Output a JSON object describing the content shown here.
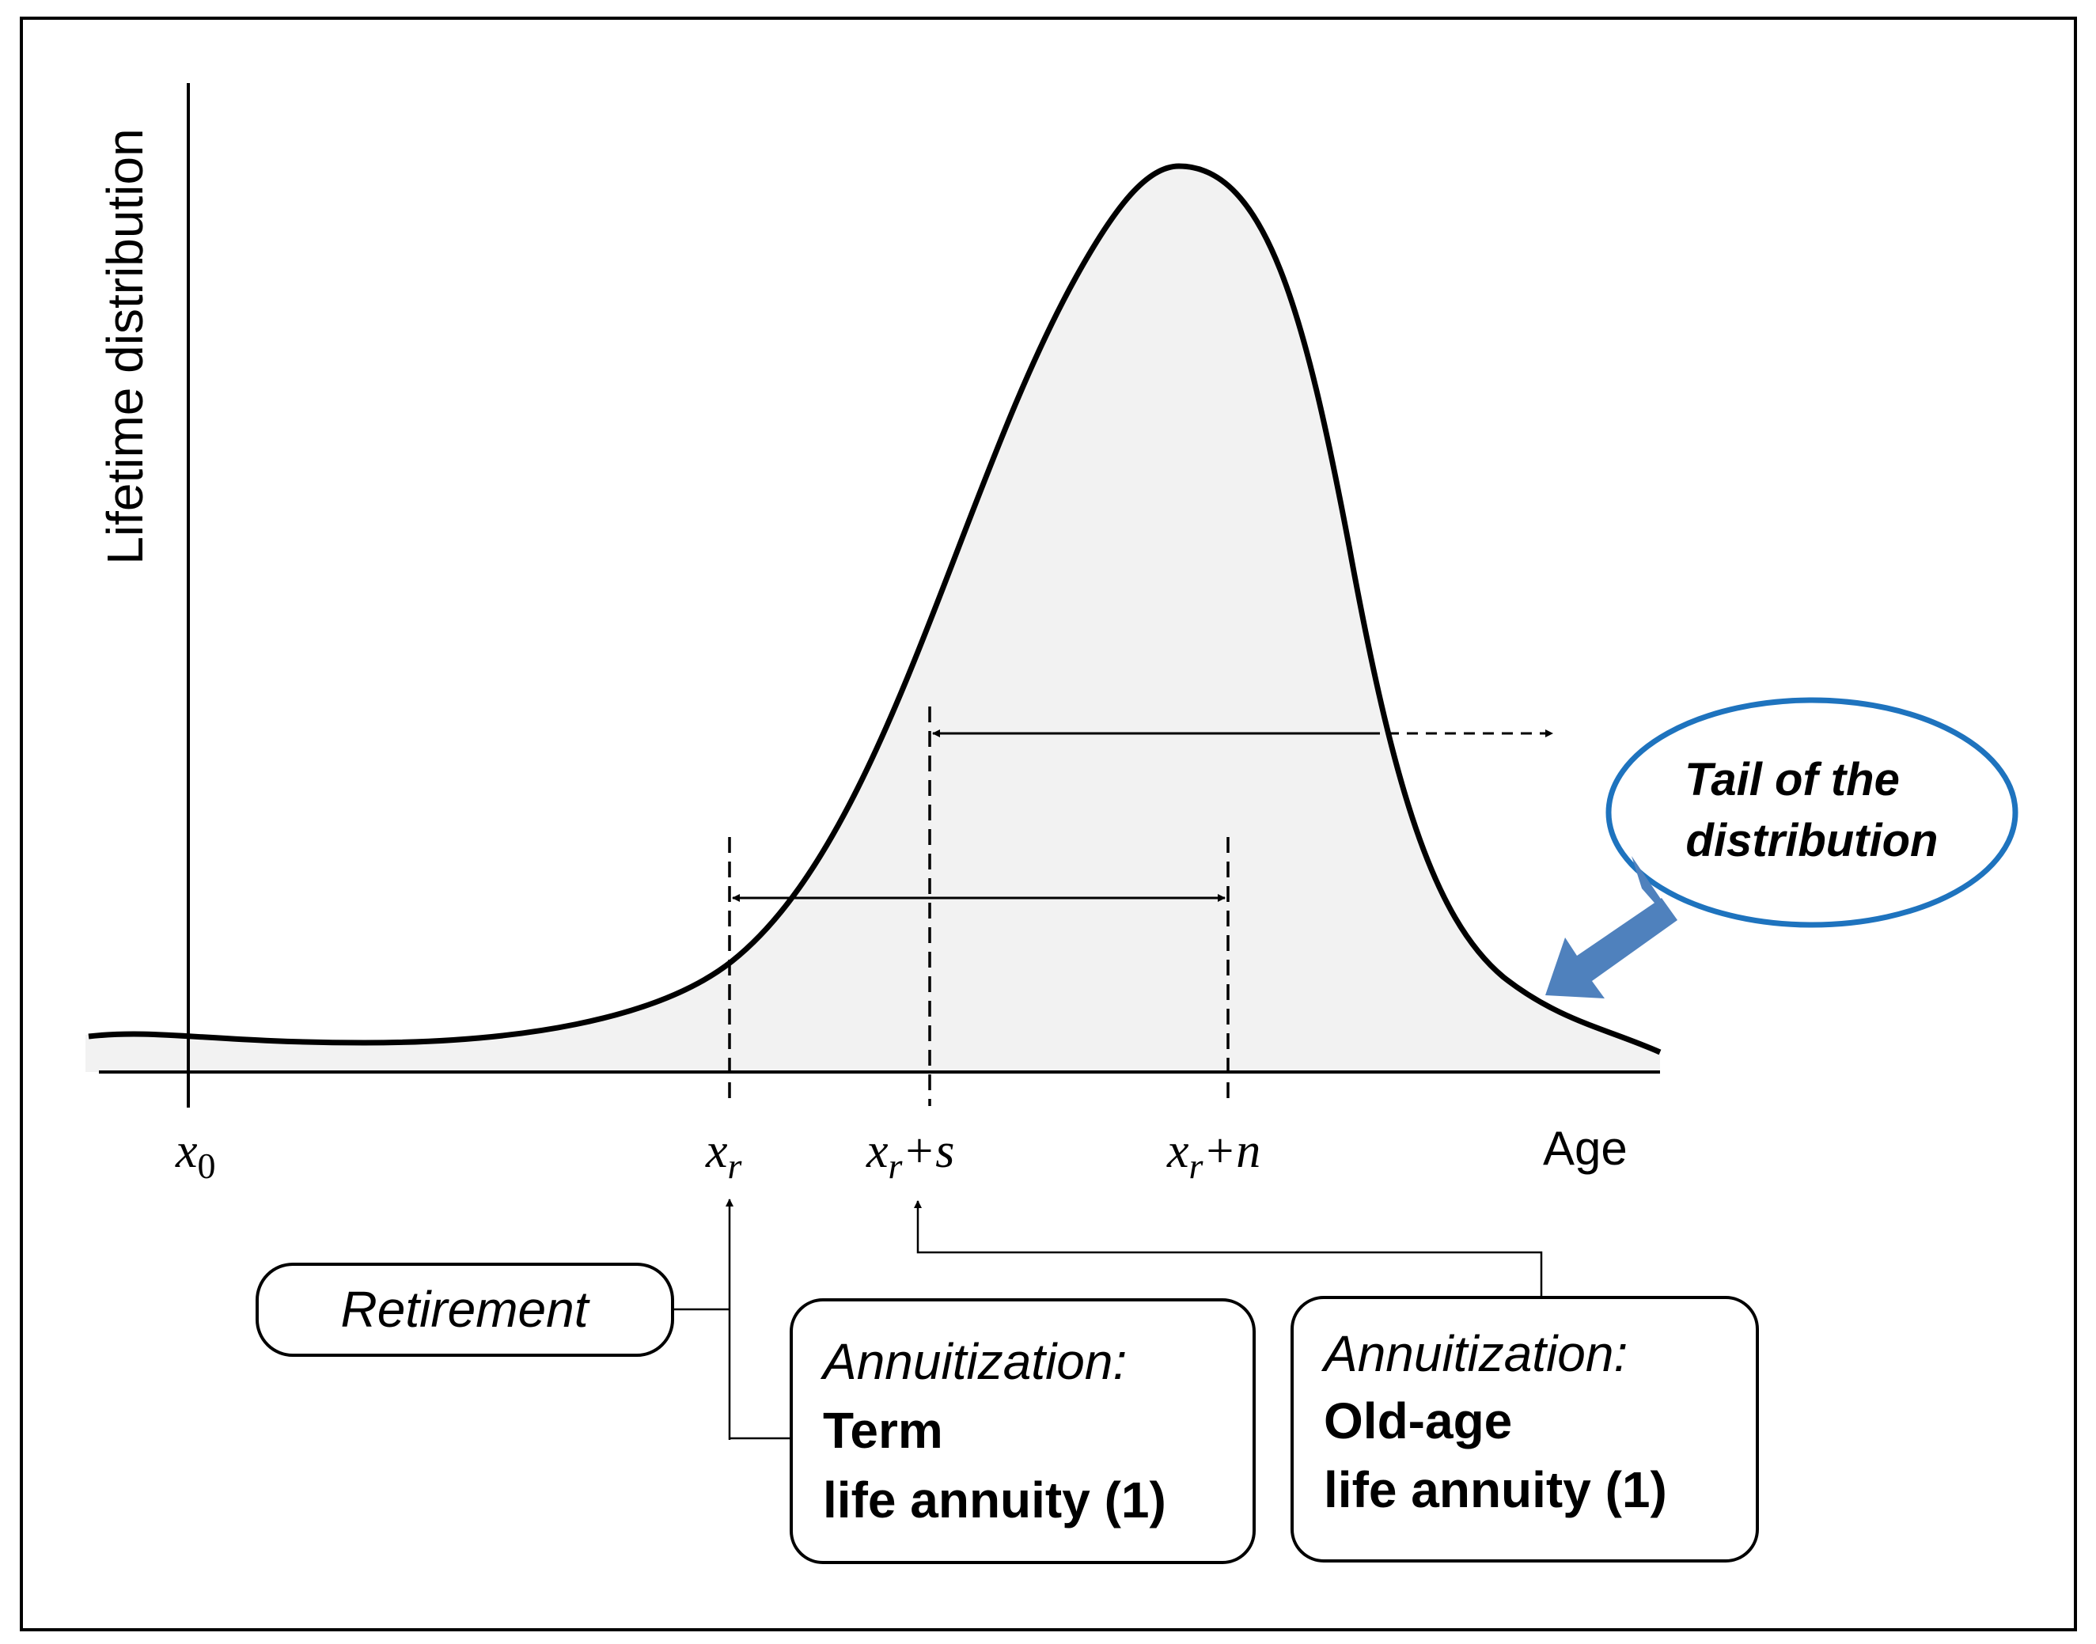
{
  "y_axis_label": "Lifetime distribution",
  "x_axis_label": "Age",
  "ticks": {
    "x0": {
      "base": "x",
      "sub": "0"
    },
    "xr": {
      "base": "x",
      "sub": "r"
    },
    "xr_s": {
      "base": "x",
      "sub": "r",
      "suffix": "+s"
    },
    "xr_n": {
      "base": "x",
      "sub": "r",
      "suffix": "+n"
    }
  },
  "tail_label": {
    "line1": "Tail of the",
    "line2": "distribution"
  },
  "retirement_label": "Retirement",
  "term_box": {
    "line1": "Annuitization:",
    "line2": "Term",
    "line3": "life annuity (1)"
  },
  "oldage_box": {
    "line1": "Annuitization:",
    "line2": "Old-age",
    "line3": "life annuity (1)"
  },
  "colors": {
    "curve": "#000000",
    "fill": "#f2f2f2",
    "tail_ellipse": "#1e73be",
    "tail_arrow": "#4f81bd"
  }
}
